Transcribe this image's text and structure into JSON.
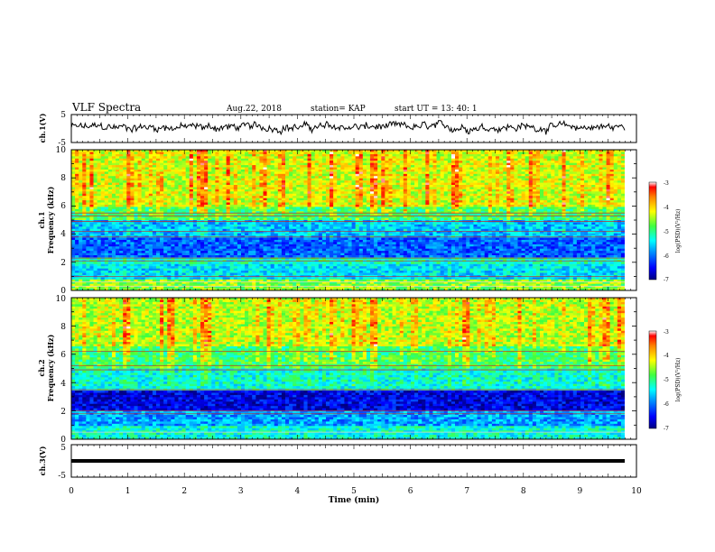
{
  "header": {
    "title": "VLF Spectra",
    "date": "Aug.22, 2018",
    "station": "station= KAP",
    "start_ut": "start  UT =  13: 40: 1"
  },
  "chart_data": [
    {
      "id": "ch1_waveform",
      "type": "line",
      "ylabel": "ch.1(V)",
      "ylim": [
        -5,
        5
      ],
      "yticks": [
        "5",
        "-5"
      ],
      "xlim": [
        0,
        10
      ],
      "color": "#000000",
      "approx_mean": 0.5,
      "approx_amplitude": 2.0
    },
    {
      "id": "ch1_spectrogram",
      "type": "heatmap",
      "ylabel_channel": "ch.1",
      "ylabel": "Frequency  (kHz)",
      "ylim": [
        0,
        10
      ],
      "yticks": [
        "0",
        "2",
        "4",
        "6",
        "8",
        "10"
      ],
      "xlim": [
        0,
        9.8
      ],
      "colorbar": {
        "label": "log(PSD)(V²/Hz)",
        "range": [
          -7,
          -3
        ],
        "ticks": [
          "-3",
          "-4",
          "-5",
          "-6",
          "-7"
        ]
      },
      "band_levels": [
        {
          "f_start": 0,
          "f_end": 0.8,
          "level": -4.6
        },
        {
          "f_start": 0.8,
          "f_end": 1.9,
          "level": -5.5
        },
        {
          "f_start": 1.9,
          "f_end": 2.4,
          "level": -5.2
        },
        {
          "f_start": 2.4,
          "f_end": 3.7,
          "level": -6.1
        },
        {
          "f_start": 3.7,
          "f_end": 5.0,
          "level": -5.7
        },
        {
          "f_start": 5.0,
          "f_end": 6.0,
          "level": -4.9
        },
        {
          "f_start": 6.0,
          "f_end": 10.0,
          "level": -4.3
        }
      ],
      "lines_khz": [
        0.3,
        0.6,
        1.0,
        2.1,
        2.3,
        3.8,
        4.2,
        4.9,
        5.3,
        5.5
      ]
    },
    {
      "id": "ch2_spectrogram",
      "type": "heatmap",
      "ylabel_channel": "ch.2",
      "ylabel": "Frequency  (kHz)",
      "ylim": [
        0,
        10
      ],
      "yticks": [
        "0",
        "2",
        "4",
        "6",
        "8",
        "10"
      ],
      "xlim": [
        0,
        9.8
      ],
      "colorbar": {
        "label": "log(PSD)(V²/Hz)",
        "range": [
          -7,
          -3
        ],
        "ticks": [
          "-3",
          "-4",
          "-5",
          "-6",
          "-7"
        ]
      },
      "band_levels": [
        {
          "f_start": 0,
          "f_end": 1.0,
          "level": -5.3
        },
        {
          "f_start": 1.0,
          "f_end": 2.0,
          "level": -5.8
        },
        {
          "f_start": 2.0,
          "f_end": 3.5,
          "level": -6.6
        },
        {
          "f_start": 3.5,
          "f_end": 5.0,
          "level": -5.3
        },
        {
          "f_start": 5.0,
          "f_end": 6.5,
          "level": -4.9
        },
        {
          "f_start": 6.5,
          "f_end": 10.0,
          "level": -4.4
        }
      ],
      "lines_khz": [
        0.5,
        1.8,
        2.0,
        3.5,
        4.9,
        5.2,
        6.2
      ]
    },
    {
      "id": "ch3_waveform",
      "type": "line",
      "ylabel": "ch.3(V)",
      "ylim": [
        -5,
        5
      ],
      "yticks": [
        "5",
        "-5"
      ],
      "xlim": [
        0,
        10
      ],
      "color": "#000000",
      "approx_mean": 0.0,
      "approx_amplitude": 0.0
    }
  ],
  "time_axis": {
    "xlabel": "Time  (min)",
    "range": [
      0,
      10
    ],
    "tick_labels": [
      "0",
      "1",
      "2",
      "3",
      "4",
      "5",
      "6",
      "7",
      "8",
      "9",
      "10"
    ]
  }
}
